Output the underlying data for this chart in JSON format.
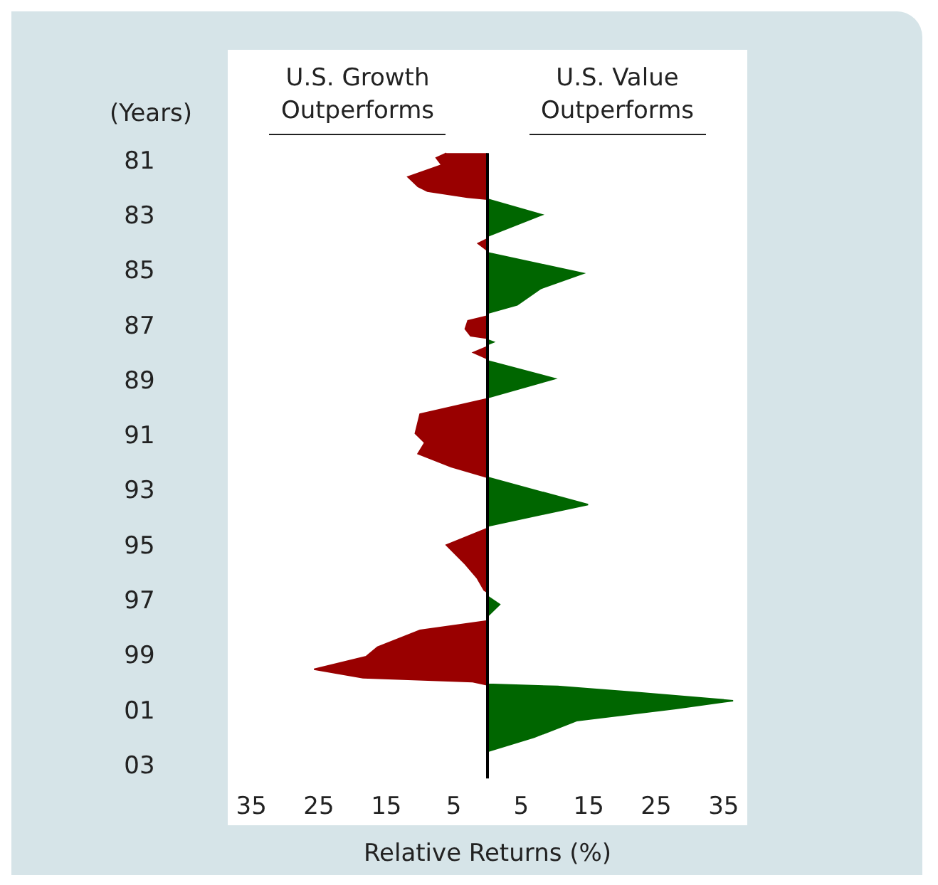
{
  "chart_data": {
    "type": "area",
    "orientation": "horizontal",
    "ylabel": "(Years)",
    "xlabel": "Relative Returns (%)",
    "xlim": [
      -38.5,
      38.5
    ],
    "annotations": [
      "U.S. Growth Outperforms",
      "U.S. Value Outperforms"
    ],
    "xticks": [
      {
        "value": -35,
        "label": "35"
      },
      {
        "value": -25,
        "label": "25"
      },
      {
        "value": -15,
        "label": "15"
      },
      {
        "value": -5,
        "label": "5"
      },
      5,
      15,
      25,
      35
    ],
    "ylim": [
      2005.2,
      1977.0
    ],
    "yticks": [
      {
        "value": 1981,
        "label": "81"
      },
      {
        "value": 1983,
        "label": "83"
      },
      {
        "value": 1985,
        "label": "85"
      },
      {
        "value": 1987,
        "label": "87"
      },
      {
        "value": 1989,
        "label": "89"
      },
      {
        "value": 1991,
        "label": "91"
      },
      {
        "value": 1993,
        "label": "93"
      },
      {
        "value": 1995,
        "label": "95"
      },
      {
        "value": 1997,
        "label": "97"
      },
      {
        "value": 1999,
        "label": "99"
      },
      {
        "value": 2001,
        "label": "01"
      },
      {
        "value": 2003,
        "label": "03"
      }
    ],
    "series": [
      {
        "color": "#990000",
        "x": [
          1980.76,
          1980.93,
          1981.19,
          1981.62,
          1981.97,
          1982.14,
          1982.36,
          1982.43,
          1983.87,
          1984.04,
          1984.3,
          1986.68,
          1986.85,
          1987.15,
          1987.4,
          1987.49,
          1987.79,
          1988.01,
          1988.24,
          1989.69,
          1990.25,
          1990.95,
          1991.29,
          1991.69,
          1992.16,
          1992.55,
          1994.4,
          1995.01,
          1995.7,
          1996.22,
          1996.65,
          1996.73,
          1997.77,
          1998.11,
          1998.72,
          1999.07,
          1999.53,
          1999.84,
          1999.98,
          2000.1
        ],
        "values": [
          -6.1,
          -7.6,
          -6.8,
          -11.8,
          -10.3,
          -8.9,
          -3,
          0,
          0,
          -1.4,
          0,
          0,
          -2.9,
          -3.3,
          -2.5,
          0,
          0,
          -2.1,
          0,
          0,
          -10,
          -10.7,
          -9.3,
          -10.3,
          -5.4,
          0,
          0,
          -6.1,
          -3.3,
          -1.5,
          -0.5,
          0,
          0,
          -10,
          -16.3,
          -18,
          -25.7,
          -18.4,
          -2.2,
          0
        ]
      },
      {
        "color": "#006600",
        "x": [
          1982.43,
          1983.0,
          1983.78,
          1984.38,
          1985.13,
          1985.68,
          1986.28,
          1986.58,
          1987.55,
          1987.63,
          1987.72,
          1988.31,
          1988.96,
          1989.65,
          1992.55,
          1993.54,
          1994.32,
          1996.87,
          1997.17,
          1997.6,
          2000.07,
          2000.15,
          2000.36,
          2000.67,
          2000.96,
          2001.4,
          2002.0,
          2002.52
        ],
        "values": [
          0,
          8.1,
          0,
          0,
          14.2,
          7.9,
          4.4,
          0,
          0,
          0.9,
          0,
          0,
          10,
          0,
          0,
          14.9,
          0,
          0,
          1.8,
          0,
          0,
          10.4,
          21.6,
          36.4,
          27.9,
          13.2,
          6.9,
          0
        ]
      }
    ]
  }
}
